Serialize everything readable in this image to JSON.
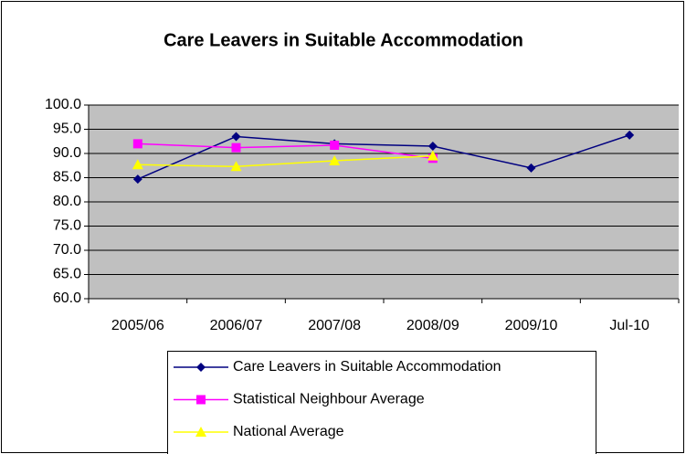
{
  "chart_data": {
    "type": "line",
    "title": "Care Leavers in Suitable Accommodation",
    "categories": [
      "2005/06",
      "2006/07",
      "2007/08",
      "2008/09",
      "2009/10",
      "Jul-10"
    ],
    "series": [
      {
        "name": "Care Leavers in Suitable Accommodation",
        "color": "#000080",
        "marker": "diamond",
        "values": [
          84.7,
          93.5,
          92.0,
          91.5,
          87.0,
          93.8
        ]
      },
      {
        "name": "Statistical Neighbour Average",
        "color": "#ff00ff",
        "marker": "square",
        "values": [
          92.0,
          91.2,
          91.7,
          89.0,
          null,
          null
        ]
      },
      {
        "name": "National Average",
        "color": "#ffff00",
        "marker": "triangle",
        "values": [
          87.7,
          87.3,
          88.5,
          89.5,
          null,
          null
        ]
      }
    ],
    "ylim": [
      60,
      100
    ],
    "yticks": [
      {
        "value": 60,
        "label": "60.0"
      },
      {
        "value": 65,
        "label": "65.0"
      },
      {
        "value": 70,
        "label": "70.0"
      },
      {
        "value": 75,
        "label": "75.0"
      },
      {
        "value": 80,
        "label": "80.0"
      },
      {
        "value": 85,
        "label": "85.0"
      },
      {
        "value": 90,
        "label": "90.0"
      },
      {
        "value": 95,
        "label": "95.0"
      },
      {
        "value": 100,
        "label": "100.0"
      }
    ],
    "grid": true
  }
}
